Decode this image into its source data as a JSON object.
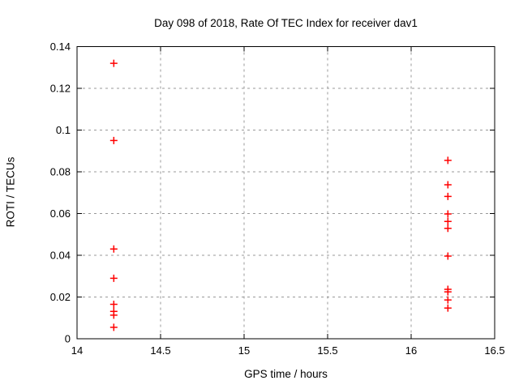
{
  "chart_data": {
    "type": "scatter",
    "title": "Day 098 of 2018, Rate Of TEC Index for receiver dav1",
    "xlabel": "GPS time / hours",
    "ylabel": "ROTI / TECUs",
    "xlim": [
      14,
      16.5
    ],
    "ylim": [
      0,
      0.14
    ],
    "grid": true,
    "legend": "none",
    "marker": {
      "shape": "plus",
      "color": "#ff0000",
      "size": 9,
      "stroke_width": 1.5
    },
    "colors": {
      "background": "#ffffff",
      "border": "#000000",
      "grid": "#999999",
      "text": "#000000",
      "marker": "#ff0000"
    },
    "xticks": [
      {
        "value": 14,
        "label": "14"
      },
      {
        "value": 14.5,
        "label": "14.5"
      },
      {
        "value": 15,
        "label": "15"
      },
      {
        "value": 15.5,
        "label": "15.5"
      },
      {
        "value": 16,
        "label": "16"
      },
      {
        "value": 16.5,
        "label": "16.5"
      }
    ],
    "yticks": [
      {
        "value": 0,
        "label": "0"
      },
      {
        "value": 0.02,
        "label": "0.02"
      },
      {
        "value": 0.04,
        "label": "0.04"
      },
      {
        "value": 0.06,
        "label": "0.06"
      },
      {
        "value": 0.08,
        "label": "0.08"
      },
      {
        "value": 0.1,
        "label": "0.1"
      },
      {
        "value": 0.12,
        "label": "0.12"
      },
      {
        "value": 0.14,
        "label": "0.14"
      }
    ],
    "series": [
      {
        "name": "ROTI",
        "points": [
          {
            "x": 14.22,
            "y": 0.132
          },
          {
            "x": 14.22,
            "y": 0.095
          },
          {
            "x": 14.22,
            "y": 0.043
          },
          {
            "x": 14.22,
            "y": 0.029
          },
          {
            "x": 14.22,
            "y": 0.0165
          },
          {
            "x": 14.22,
            "y": 0.0131
          },
          {
            "x": 14.22,
            "y": 0.0113
          },
          {
            "x": 14.22,
            "y": 0.0055
          },
          {
            "x": 16.22,
            "y": 0.0855
          },
          {
            "x": 16.22,
            "y": 0.0738
          },
          {
            "x": 16.22,
            "y": 0.0682
          },
          {
            "x": 16.22,
            "y": 0.0598
          },
          {
            "x": 16.22,
            "y": 0.0562
          },
          {
            "x": 16.22,
            "y": 0.0529
          },
          {
            "x": 16.22,
            "y": 0.0396
          },
          {
            "x": 16.22,
            "y": 0.0237
          },
          {
            "x": 16.22,
            "y": 0.0225
          },
          {
            "x": 16.22,
            "y": 0.0186
          },
          {
            "x": 16.22,
            "y": 0.0147
          }
        ]
      }
    ]
  }
}
